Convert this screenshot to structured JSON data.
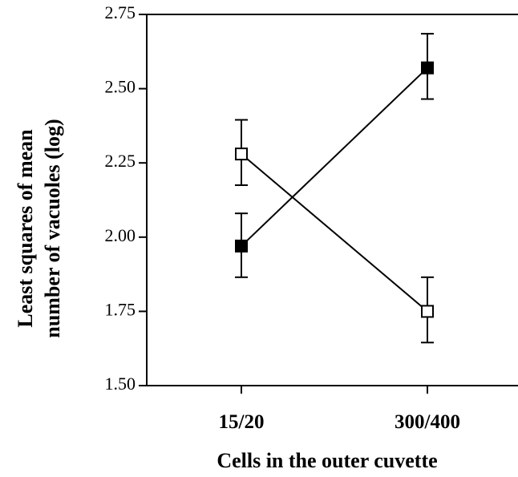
{
  "chart_data": {
    "type": "line",
    "title": "",
    "xlabel": "Cells in the outer cuvette",
    "ylabel_lines": [
      "Least squares of mean",
      "number of vacuoles (log)"
    ],
    "categories": [
      "15/20",
      "300/400"
    ],
    "ylim": [
      1.5,
      2.75
    ],
    "yticks": [
      1.5,
      1.75,
      2.0,
      2.25,
      2.5,
      2.75
    ],
    "ytick_labels": [
      "1.50",
      "1.75",
      "2.00",
      "2.25",
      "2.50",
      "2.75"
    ],
    "grid": false,
    "series": [
      {
        "marker": "open-square",
        "marker_fill": "#ffffff",
        "values": [
          2.28,
          1.75
        ],
        "err_low": [
          2.175,
          1.645
        ],
        "err_high": [
          2.395,
          1.865
        ]
      },
      {
        "marker": "filled-square",
        "marker_fill": "#000000",
        "values": [
          1.97,
          2.57
        ],
        "err_low": [
          1.865,
          2.465
        ],
        "err_high": [
          2.08,
          2.685
        ]
      }
    ]
  }
}
